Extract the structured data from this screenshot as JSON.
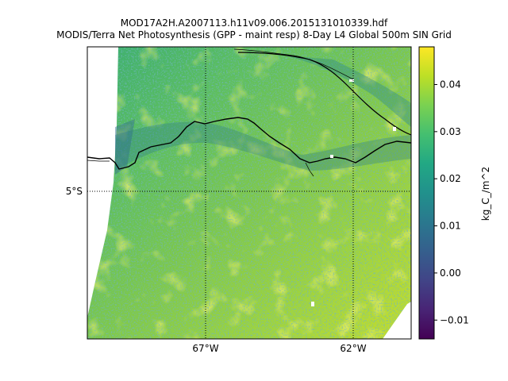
{
  "title": {
    "line1": "MOD17A2H.A2007113.h11v09.006.2015131010339.hdf",
    "line2": "MODIS/Terra Net Photosynthesis (GPP - maint resp) 8-Day L4 Global 500m SIN Grid"
  },
  "map": {
    "projection": "Sinusoidal",
    "longitude_labels": [
      "67°W",
      "62°W"
    ],
    "latitude_labels": [
      "5°S"
    ],
    "graticule_style": "dotted",
    "fill_colormap": "viridis",
    "no_data_color": "#ffffff"
  },
  "colorbar": {
    "label": "kg_C_/m^2",
    "tick_labels": [
      "0.04",
      "0.03",
      "0.02",
      "0.01",
      "0.00",
      "−0.01"
    ],
    "range": [
      -0.014,
      0.048
    ],
    "colormap": "viridis"
  },
  "chart_data": {
    "type": "heatmap",
    "title": "MOD17A2H.A2007113.h11v09.006.2015131010339.hdf\nMODIS/Terra Net Photosynthesis (GPP - maint resp) 8-Day L4 Global 500m SIN Grid",
    "xlabel": "",
    "ylabel": "",
    "colorbar_label": "kg_C_/m^2",
    "value_range": [
      -0.014,
      0.048
    ],
    "colorbar_ticks": [
      0.04,
      0.03,
      0.02,
      0.01,
      0.0,
      -0.01
    ],
    "grid": true
  }
}
